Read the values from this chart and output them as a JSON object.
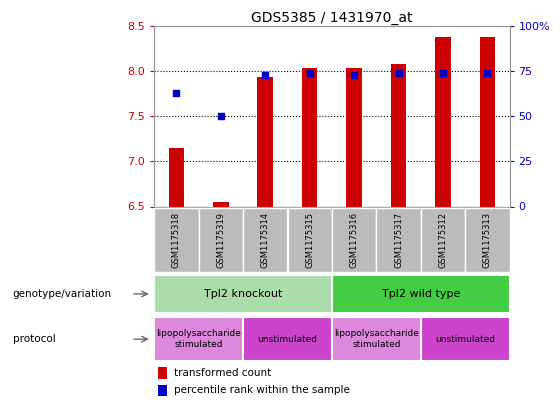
{
  "title": "GDS5385 / 1431970_at",
  "samples": [
    "GSM1175318",
    "GSM1175319",
    "GSM1175314",
    "GSM1175315",
    "GSM1175316",
    "GSM1175317",
    "GSM1175312",
    "GSM1175313"
  ],
  "transformed_count": [
    7.15,
    6.55,
    7.93,
    8.03,
    8.03,
    8.08,
    8.38,
    8.38
  ],
  "percentile_rank": [
    63,
    50,
    73,
    74,
    73,
    74,
    74,
    74
  ],
  "ylim_left": [
    6.5,
    8.5
  ],
  "ylim_right": [
    0,
    100
  ],
  "yticks_left": [
    6.5,
    7.0,
    7.5,
    8.0,
    8.5
  ],
  "yticks_right": [
    0,
    25,
    50,
    75,
    100
  ],
  "bar_color": "#cc0000",
  "dot_color": "#0000cc",
  "bar_bottom": 6.5,
  "genotype_groups": [
    {
      "label": "Tpl2 knockout",
      "start": 0,
      "end": 4,
      "color": "#aaddaa"
    },
    {
      "label": "Tpl2 wild type",
      "start": 4,
      "end": 8,
      "color": "#44cc44"
    }
  ],
  "protocol_groups": [
    {
      "label": "lipopolysaccharide\nstimulated",
      "start": 0,
      "end": 2,
      "color": "#dd88dd"
    },
    {
      "label": "unstimulated",
      "start": 2,
      "end": 4,
      "color": "#cc44cc"
    },
    {
      "label": "lipopolysaccharide\nstimulated",
      "start": 4,
      "end": 6,
      "color": "#dd88dd"
    },
    {
      "label": "unstimulated",
      "start": 6,
      "end": 8,
      "color": "#cc44cc"
    }
  ],
  "sample_box_color": "#bbbbbb",
  "legend_items": [
    {
      "label": "transformed count",
      "color": "#cc0000"
    },
    {
      "label": "percentile rank within the sample",
      "color": "#0000cc"
    }
  ],
  "left_label_color": "#cc0000",
  "right_label_color": "#0000cc",
  "background_color": "#ffffff",
  "plot_bg_color": "#ffffff",
  "bar_width": 0.35
}
